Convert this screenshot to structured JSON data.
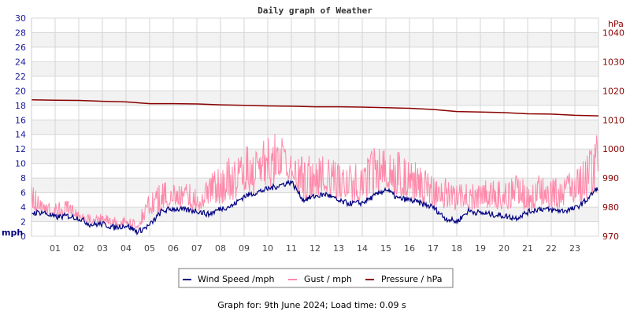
{
  "chart_data": {
    "type": "line",
    "title": "Daily graph of Weather",
    "ylabel_left": "mph",
    "ylabel_right": "hPa",
    "ylim_left": [
      0,
      30
    ],
    "ylim_right": [
      970,
      1045
    ],
    "yticks_left": [
      "0",
      "2",
      "4",
      "6",
      "8",
      "10",
      "12",
      "14",
      "16",
      "18",
      "20",
      "22",
      "24",
      "26",
      "28",
      "30"
    ],
    "yticks_right": [
      "970",
      "980",
      "990",
      "1000",
      "1010",
      "1020",
      "1030",
      "1040"
    ],
    "xticks": [
      "01",
      "02",
      "03",
      "04",
      "05",
      "06",
      "07",
      "08",
      "09",
      "10",
      "11",
      "12",
      "13",
      "14",
      "15",
      "16",
      "17",
      "18",
      "19",
      "20",
      "21",
      "22",
      "23"
    ],
    "grid": true,
    "legend_position": "bottom",
    "series": [
      {
        "name": "Wind Speed /mph",
        "color": "#000080",
        "axis": "left",
        "x_hours_step": 0.5,
        "values": [
          3.2,
          3.3,
          2.6,
          2.8,
          2.5,
          1.6,
          1.7,
          1.2,
          1.5,
          0.6,
          1.5,
          3.4,
          3.8,
          3.6,
          3.5,
          3.0,
          3.8,
          4.2,
          5.5,
          6.0,
          6.5,
          7.0,
          7.5,
          5.0,
          5.5,
          5.8,
          4.8,
          4.5,
          4.6,
          5.5,
          6.5,
          5.2,
          5.0,
          4.5,
          4.0,
          2.5,
          2.0,
          3.5,
          3.2,
          3.0,
          2.8,
          2.5,
          3.3,
          3.8,
          3.6,
          3.5,
          3.8,
          5.0,
          6.8
        ]
      },
      {
        "name": "Gust / mph",
        "color": "#ff88aa",
        "axis": "left",
        "x_hours_step": 0.5,
        "values": [
          6,
          4.5,
          3.8,
          4,
          3,
          2.5,
          2.5,
          2.2,
          2.2,
          2,
          5,
          6,
          6.5,
          6,
          6,
          7,
          8,
          9,
          10,
          10,
          11,
          12,
          10,
          9,
          9,
          9,
          8,
          8,
          8.5,
          10,
          10,
          9.5,
          8.5,
          8,
          6.5,
          6.5,
          6,
          6,
          6,
          6.5,
          6,
          7,
          6,
          7,
          6.5,
          6.5,
          8,
          9,
          12
        ]
      },
      {
        "name": "Pressure / hPa",
        "color": "#8b0000",
        "axis": "right",
        "x_hours_step": 1,
        "values": [
          1016.9,
          1016.8,
          1016.7,
          1016.4,
          1016.2,
          1015.6,
          1015.6,
          1015.5,
          1015.2,
          1015.0,
          1014.8,
          1014.7,
          1014.5,
          1014.5,
          1014.4,
          1014.2,
          1014.0,
          1013.6,
          1012.9,
          1012.7,
          1012.5,
          1012.1,
          1012.0,
          1011.6,
          1011.4
        ]
      }
    ]
  },
  "footer": "Graph for: 9th June 2024; Load time: 0.09 s"
}
